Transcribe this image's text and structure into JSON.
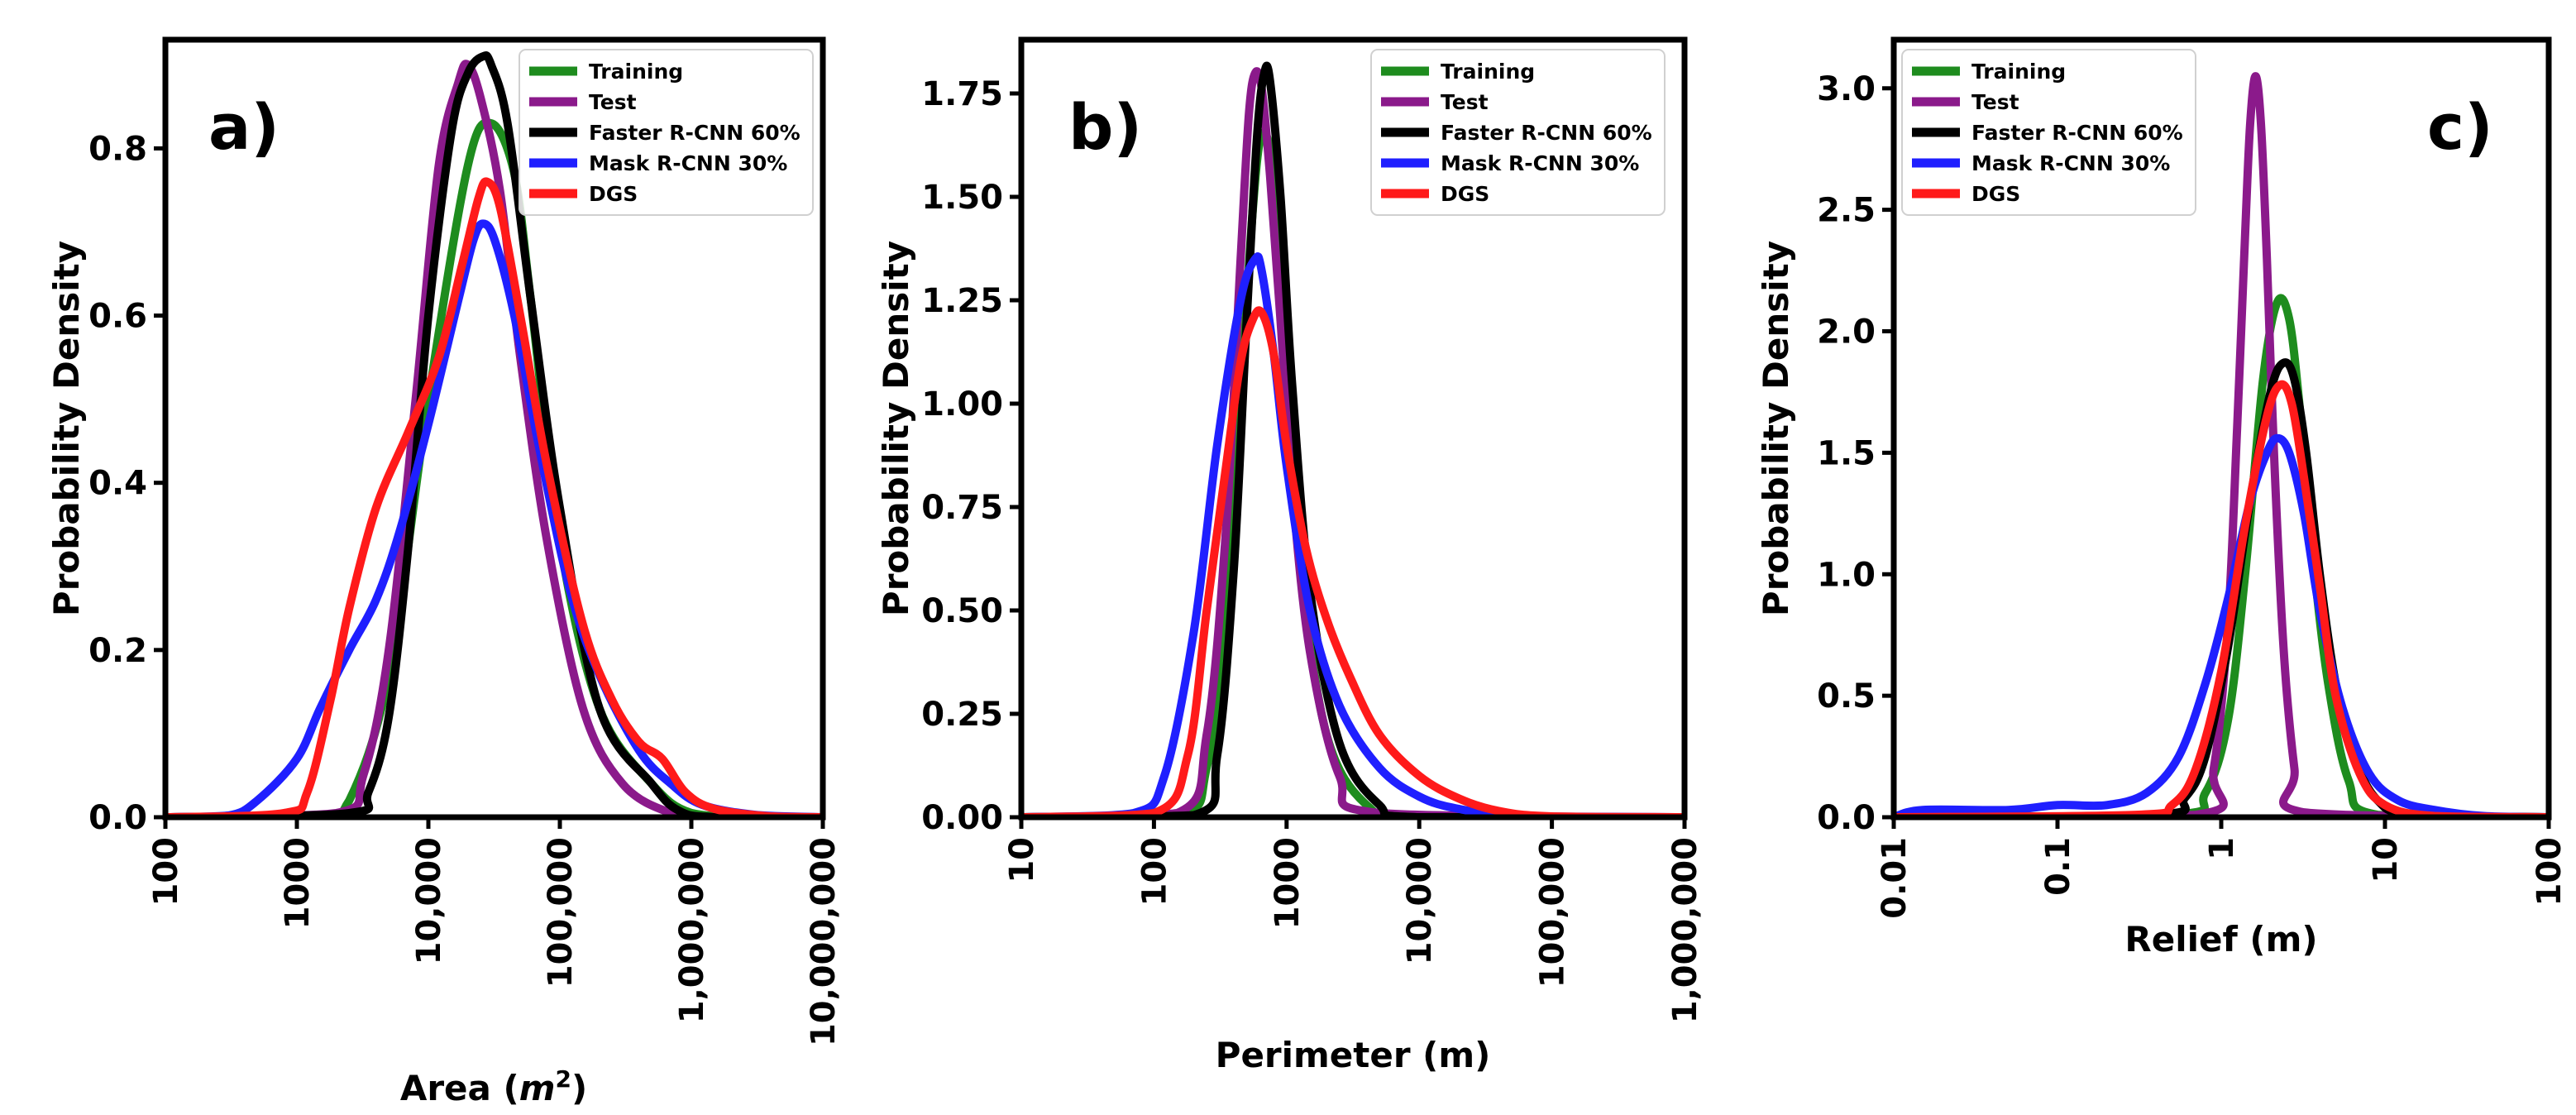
{
  "figure": {
    "description_title": "",
    "series_names": [
      "Training",
      "Test",
      "Faster R-CNN 60%",
      "Mask R-CNN 30%",
      "DGS"
    ],
    "colors": {
      "Training": "#1e8c1e",
      "Test": "#8b1a8b",
      "Faster R-CNN 60%": "#000000",
      "Mask R-CNN 30%": "#1f1fff",
      "DGS": "#ff1a1a"
    }
  },
  "chart_data": [
    {
      "panel": "a)",
      "type": "line",
      "xscale": "log",
      "xlabel": "Area (m²)",
      "xlabel_base": "Area (",
      "xlabel_sym": "m",
      "xlabel_sup": "2",
      "xlabel_close": ")",
      "ylabel": "Probability Density",
      "xlim": [
        100,
        10000000
      ],
      "ylim": [
        0,
        0.93
      ],
      "xticks": [
        {
          "value": 100,
          "label": "100"
        },
        {
          "value": 1000,
          "label": "1000"
        },
        {
          "value": 10000,
          "label": "10,000"
        },
        {
          "value": 100000,
          "label": "100,000"
        },
        {
          "value": 1000000,
          "label": "1,000,000"
        },
        {
          "value": 10000000,
          "label": "10,000,000"
        }
      ],
      "yticks": [
        {
          "value": 0.0,
          "label": "0.0"
        },
        {
          "value": 0.2,
          "label": "0.2"
        },
        {
          "value": 0.4,
          "label": "0.4"
        },
        {
          "value": 0.6,
          "label": "0.6"
        },
        {
          "value": 0.8,
          "label": "0.8"
        }
      ],
      "legend_position": "top-right",
      "series": [
        {
          "name": "Training",
          "x": [
            100,
            1500,
            2500,
            5000,
            10000,
            20000,
            30000,
            45000,
            60000,
            100000,
            200000,
            500000,
            1000000,
            3000000,
            10000000
          ],
          "y": [
            0,
            0.002,
            0.02,
            0.17,
            0.5,
            0.78,
            0.83,
            0.77,
            0.62,
            0.33,
            0.13,
            0.04,
            0.005,
            0,
            0
          ]
        },
        {
          "name": "Test",
          "x": [
            100,
            2000,
            3200,
            5000,
            8000,
            12000,
            17000,
            20000,
            25000,
            35000,
            50000,
            80000,
            150000,
            300000,
            700000,
            1500000,
            10000000
          ],
          "y": [
            0,
            0.005,
            0.05,
            0.2,
            0.5,
            0.78,
            0.88,
            0.9,
            0.86,
            0.75,
            0.55,
            0.33,
            0.13,
            0.04,
            0.005,
            0,
            0
          ]
        },
        {
          "name": "Faster R-CNN 60%",
          "x": [
            100,
            2500,
            3500,
            5000,
            7000,
            10000,
            15000,
            20000,
            26000,
            30000,
            40000,
            60000,
            100000,
            200000,
            500000,
            800000,
            1500000,
            10000000
          ],
          "y": [
            0,
            0.005,
            0.03,
            0.12,
            0.32,
            0.6,
            0.82,
            0.89,
            0.91,
            0.9,
            0.83,
            0.62,
            0.37,
            0.13,
            0.04,
            0.008,
            0,
            0
          ]
        },
        {
          "name": "Mask R-CNN 30%",
          "x": [
            100,
            300,
            500,
            1000,
            1500,
            2500,
            4000,
            6000,
            10000,
            17000,
            22000,
            26000,
            32000,
            45000,
            70000,
            120000,
            200000,
            400000,
            700000,
            1200000,
            3000000,
            10000000
          ],
          "y": [
            0,
            0.002,
            0.02,
            0.07,
            0.13,
            0.2,
            0.26,
            0.34,
            0.47,
            0.62,
            0.69,
            0.71,
            0.69,
            0.6,
            0.44,
            0.27,
            0.17,
            0.08,
            0.04,
            0.015,
            0.003,
            0
          ]
        },
        {
          "name": "DGS",
          "x": [
            100,
            800,
            1200,
            1800,
            2500,
            4000,
            7000,
            12000,
            18000,
            24000,
            28000,
            35000,
            50000,
            80000,
            150000,
            250000,
            400000,
            600000,
            900000,
            1500000,
            4000000,
            10000000
          ],
          "y": [
            0,
            0.005,
            0.03,
            0.14,
            0.25,
            0.37,
            0.46,
            0.55,
            0.66,
            0.74,
            0.76,
            0.73,
            0.6,
            0.42,
            0.23,
            0.14,
            0.09,
            0.07,
            0.03,
            0.01,
            0.001,
            0
          ]
        }
      ]
    },
    {
      "panel": "b)",
      "type": "line",
      "xscale": "log",
      "xlabel": "Perimeter (m)",
      "ylabel": "Probability Density",
      "xlim": [
        10,
        1000000
      ],
      "ylim": [
        0,
        1.88
      ],
      "xticks": [
        {
          "value": 10,
          "label": "10"
        },
        {
          "value": 100,
          "label": "100"
        },
        {
          "value": 1000,
          "label": "1000"
        },
        {
          "value": 10000,
          "label": "10,000"
        },
        {
          "value": 100000,
          "label": "100,000"
        },
        {
          "value": 1000000,
          "label": "1,000,000"
        }
      ],
      "yticks": [
        {
          "value": 0.0,
          "label": "0.00"
        },
        {
          "value": 0.25,
          "label": "0.25"
        },
        {
          "value": 0.5,
          "label": "0.50"
        },
        {
          "value": 0.75,
          "label": "0.75"
        },
        {
          "value": 1.0,
          "label": "1.00"
        },
        {
          "value": 1.25,
          "label": "1.25"
        },
        {
          "value": 1.5,
          "label": "1.50"
        },
        {
          "value": 1.75,
          "label": "1.75"
        }
      ],
      "legend_position": "top-right",
      "series": [
        {
          "name": "Training",
          "x": [
            10,
            150,
            250,
            350,
            450,
            550,
            650,
            800,
            1000,
            1300,
            2000,
            4000,
            10000,
            1000000
          ],
          "y": [
            0,
            0.005,
            0.12,
            0.5,
            1.0,
            1.45,
            1.65,
            1.55,
            1.1,
            0.6,
            0.2,
            0.03,
            0,
            0
          ]
        },
        {
          "name": "Test",
          "x": [
            10,
            150,
            250,
            350,
            450,
            520,
            580,
            650,
            750,
            900,
            1100,
            1500,
            2500,
            5000,
            1000000
          ],
          "y": [
            0,
            0.01,
            0.2,
            0.7,
            1.35,
            1.7,
            1.8,
            1.76,
            1.55,
            1.2,
            0.8,
            0.4,
            0.1,
            0.01,
            0
          ]
        },
        {
          "name": "Faster R-CNN 60%",
          "x": [
            10,
            200,
            300,
            400,
            500,
            600,
            680,
            750,
            900,
            1100,
            1500,
            2500,
            5000,
            10000,
            1000000
          ],
          "y": [
            0,
            0.005,
            0.15,
            0.6,
            1.2,
            1.65,
            1.8,
            1.78,
            1.5,
            1.05,
            0.55,
            0.18,
            0.03,
            0,
            0
          ]
        },
        {
          "name": "Mask R-CNN 30%",
          "x": [
            10,
            70,
            120,
            200,
            300,
            450,
            580,
            650,
            800,
            1000,
            1500,
            2500,
            5000,
            10000,
            20000,
            60000,
            1000000
          ],
          "y": [
            0,
            0.01,
            0.1,
            0.45,
            0.9,
            1.25,
            1.35,
            1.32,
            1.12,
            0.85,
            0.5,
            0.27,
            0.12,
            0.05,
            0.02,
            0.002,
            0
          ]
        },
        {
          "name": "DGS",
          "x": [
            10,
            100,
            180,
            250,
            350,
            450,
            550,
            650,
            800,
            1000,
            1400,
            2000,
            3000,
            5000,
            10000,
            20000,
            40000,
            100000,
            1000000
          ],
          "y": [
            0,
            0.01,
            0.15,
            0.5,
            0.85,
            1.1,
            1.2,
            1.22,
            1.12,
            0.9,
            0.65,
            0.48,
            0.34,
            0.2,
            0.1,
            0.045,
            0.015,
            0.002,
            0
          ]
        }
      ]
    },
    {
      "panel": "c)",
      "type": "line",
      "xscale": "log",
      "xlabel": "Relief (m)",
      "ylabel": "Probability Density",
      "xlim": [
        0.01,
        100
      ],
      "ylim": [
        0,
        3.2
      ],
      "xticks": [
        {
          "value": 0.01,
          "label": "0.01"
        },
        {
          "value": 0.1,
          "label": "0.1"
        },
        {
          "value": 1,
          "label": "1"
        },
        {
          "value": 10,
          "label": "10"
        },
        {
          "value": 100,
          "label": "100"
        }
      ],
      "yticks": [
        {
          "value": 0.0,
          "label": "0.0"
        },
        {
          "value": 0.5,
          "label": "0.5"
        },
        {
          "value": 1.0,
          "label": "1.0"
        },
        {
          "value": 1.5,
          "label": "1.5"
        },
        {
          "value": 2.0,
          "label": "2.0"
        },
        {
          "value": 2.5,
          "label": "2.5"
        },
        {
          "value": 3.0,
          "label": "3.0"
        }
      ],
      "legend_position": "top-left",
      "series": [
        {
          "name": "Training",
          "x": [
            0.01,
            0.5,
            0.8,
            1.1,
            1.4,
            1.8,
            2.2,
            2.6,
            3.0,
            3.6,
            4.5,
            6,
            9,
            100
          ],
          "y": [
            0,
            0.01,
            0.1,
            0.4,
            1.0,
            1.8,
            2.12,
            2.05,
            1.7,
            1.1,
            0.55,
            0.15,
            0.01,
            0
          ]
        },
        {
          "name": "Test",
          "x": [
            0.01,
            0.7,
            0.9,
            1.1,
            1.25,
            1.4,
            1.5,
            1.62,
            1.75,
            1.9,
            2.1,
            2.4,
            2.8,
            3.2,
            100
          ],
          "y": [
            0,
            0.01,
            0.2,
            0.8,
            1.6,
            2.4,
            2.85,
            3.05,
            2.85,
            2.3,
            1.5,
            0.7,
            0.2,
            0.02,
            0
          ]
        },
        {
          "name": "Faster R-CNN 60%",
          "x": [
            0.01,
            0.4,
            0.6,
            0.8,
            1.1,
            1.5,
            2.0,
            2.4,
            2.8,
            3.3,
            4,
            5,
            6.5,
            9,
            15,
            100
          ],
          "y": [
            0,
            0.01,
            0.08,
            0.25,
            0.7,
            1.3,
            1.75,
            1.87,
            1.8,
            1.5,
            1.0,
            0.55,
            0.25,
            0.07,
            0.01,
            0
          ]
        },
        {
          "name": "Mask R-CNN 30%",
          "x": [
            0.01,
            0.015,
            0.05,
            0.1,
            0.2,
            0.35,
            0.55,
            0.8,
            1.1,
            1.5,
            1.9,
            2.2,
            2.6,
            3.2,
            4,
            5.5,
            8,
            12,
            20,
            40,
            100
          ],
          "y": [
            0,
            0.03,
            0.03,
            0.05,
            0.05,
            0.1,
            0.25,
            0.55,
            0.9,
            1.3,
            1.5,
            1.56,
            1.5,
            1.25,
            0.85,
            0.45,
            0.18,
            0.07,
            0.03,
            0.005,
            0
          ]
        },
        {
          "name": "DGS",
          "x": [
            0.01,
            0.3,
            0.5,
            0.7,
            1.0,
            1.4,
            1.9,
            2.3,
            2.7,
            3.2,
            4,
            5,
            7,
            10,
            20,
            100
          ],
          "y": [
            0,
            0.01,
            0.05,
            0.2,
            0.6,
            1.2,
            1.65,
            1.78,
            1.7,
            1.4,
            0.95,
            0.5,
            0.18,
            0.05,
            0.005,
            0
          ]
        }
      ]
    }
  ]
}
